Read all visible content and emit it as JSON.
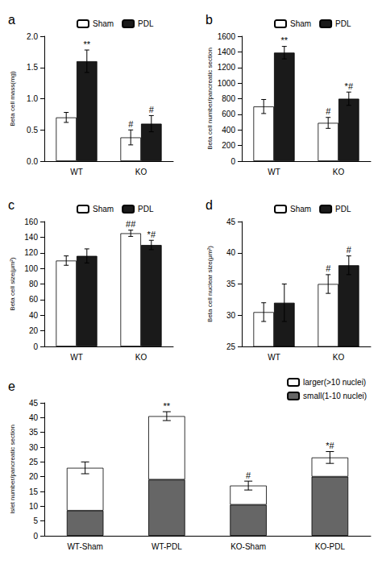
{
  "chart_data": [
    {
      "type": "bar",
      "title": "a",
      "ylabel": "Beta cell mass(mg)",
      "categories": [
        "WT",
        "KO"
      ],
      "series": [
        {
          "name": "Sham",
          "color": "#ffffff",
          "values": [
            0.7,
            0.38
          ],
          "errors": [
            0.08,
            0.12
          ]
        },
        {
          "name": "PDL",
          "color": "#1a1a1a",
          "values": [
            1.6,
            0.6
          ],
          "errors": [
            0.18,
            0.13
          ]
        }
      ],
      "ylim": [
        0,
        2.0
      ],
      "yticks": [
        {
          "value": 0,
          "label": "0.0"
        },
        {
          "value": 0.5,
          "label": "0.5"
        },
        {
          "value": 1.0,
          "label": "1.0"
        },
        {
          "value": 1.5,
          "label": "1.5"
        },
        {
          "value": 2.0,
          "label": "2.0"
        }
      ],
      "grid": false,
      "legend": "upper center",
      "annotations": [
        {
          "text": "**",
          "series": "PDL",
          "category": "WT"
        },
        {
          "text": "#",
          "series": "Sham",
          "category": "KO"
        },
        {
          "text": "#",
          "series": "PDL",
          "category": "KO"
        }
      ]
    },
    {
      "type": "bar",
      "title": "b",
      "ylabel": "Beta cell number/pancreatic section",
      "categories": [
        "WT",
        "KO"
      ],
      "series": [
        {
          "name": "Sham",
          "color": "#ffffff",
          "values": [
            700,
            490
          ],
          "errors": [
            90,
            70
          ]
        },
        {
          "name": "PDL",
          "color": "#1a1a1a",
          "values": [
            1390,
            800
          ],
          "errors": [
            80,
            85
          ]
        }
      ],
      "ylim": [
        0,
        1600
      ],
      "yticks": [
        0,
        200,
        400,
        600,
        800,
        1000,
        1200,
        1400,
        1600
      ],
      "grid": false,
      "legend": "upper center",
      "annotations": [
        {
          "text": "**",
          "series": "PDL",
          "category": "WT"
        },
        {
          "text": "#",
          "series": "Sham",
          "category": "KO"
        },
        {
          "text": "*#",
          "series": "PDL",
          "category": "KO"
        }
      ]
    },
    {
      "type": "bar",
      "title": "c",
      "ylabel": "Beta cell size(μm²)",
      "categories": [
        "WT",
        "KO"
      ],
      "series": [
        {
          "name": "Sham",
          "color": "#ffffff",
          "values": [
            110,
            145
          ],
          "errors": [
            6,
            4
          ]
        },
        {
          "name": "PDL",
          "color": "#1a1a1a",
          "values": [
            116,
            130
          ],
          "errors": [
            9,
            6
          ]
        }
      ],
      "ylim": [
        0,
        160
      ],
      "yticks": [
        0,
        20,
        40,
        60,
        80,
        100,
        120,
        140,
        160
      ],
      "grid": false,
      "legend": "upper center",
      "annotations": [
        {
          "text": "##",
          "series": "Sham",
          "category": "KO"
        },
        {
          "text": "*#",
          "series": "PDL",
          "category": "KO"
        }
      ]
    },
    {
      "type": "bar",
      "title": "d",
      "ylabel": "Beta cell nuclear size(μm²)",
      "categories": [
        "WT",
        "KO"
      ],
      "series": [
        {
          "name": "Sham",
          "color": "#ffffff",
          "values": [
            30.5,
            35.0
          ],
          "errors": [
            1.5,
            1.5
          ]
        },
        {
          "name": "PDL",
          "color": "#1a1a1a",
          "values": [
            32.0,
            38.0
          ],
          "errors": [
            3.0,
            1.5
          ]
        }
      ],
      "ylim": [
        25,
        45
      ],
      "yticks": [
        25,
        30,
        35,
        40,
        45
      ],
      "grid": false,
      "legend": "upper center",
      "annotations": [
        {
          "text": "#",
          "series": "Sham",
          "category": "KO"
        },
        {
          "text": "#",
          "series": "PDL",
          "category": "KO"
        }
      ]
    },
    {
      "type": "bar",
      "stacked": true,
      "title": "e",
      "ylabel": "Islet number/pancreatic section",
      "categories": [
        "WT-Sham",
        "WT-PDL",
        "KO-Sham",
        "KO-PDL"
      ],
      "series": [
        {
          "name": "small(1-10 nuclei)",
          "color": "#666666",
          "values": [
            8.5,
            19.0,
            10.5,
            20.0
          ]
        },
        {
          "name": "larger(>10 nuclei)",
          "color": "#ffffff",
          "values": [
            14.5,
            21.5,
            6.5,
            6.5
          ]
        }
      ],
      "errors": [
        2.0,
        1.5,
        1.5,
        2.0
      ],
      "ylim": [
        0,
        45
      ],
      "yticks": [
        0,
        5,
        10,
        15,
        20,
        25,
        30,
        35,
        40,
        45
      ],
      "grid": false,
      "legend": "upper right",
      "annotations": [
        {
          "text": "**",
          "category": "WT-PDL"
        },
        {
          "text": "#",
          "category": "KO-Sham"
        },
        {
          "text": "*#",
          "category": "KO-PDL"
        }
      ]
    }
  ]
}
